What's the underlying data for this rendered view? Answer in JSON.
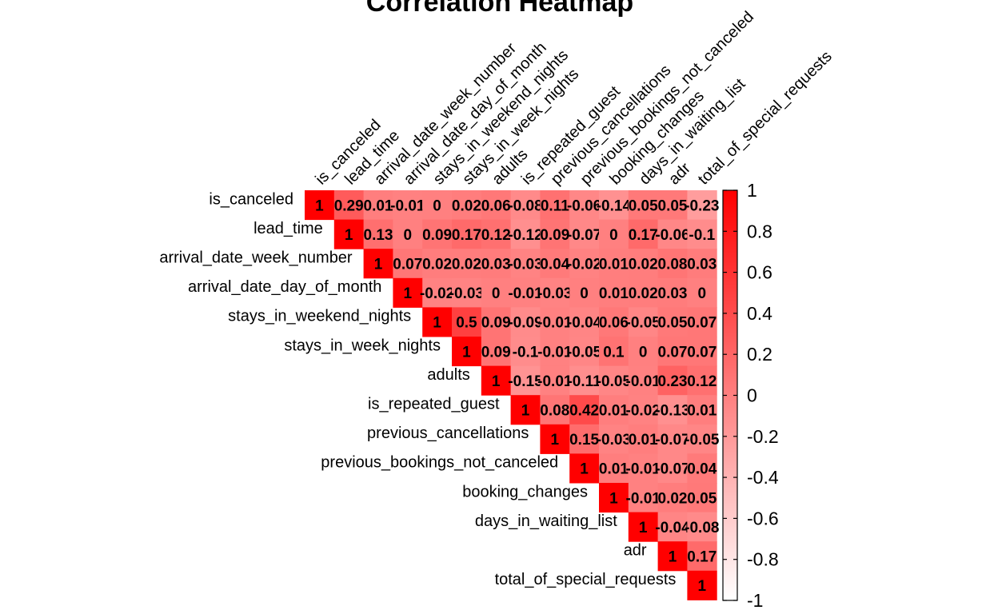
{
  "chart_data": {
    "type": "heatmap",
    "title": "Correlation Heatmap",
    "variables": [
      "is_canceled",
      "lead_time",
      "arrival_date_week_number",
      "arrival_date_day_of_month",
      "stays_in_weekend_nights",
      "stays_in_week_nights",
      "adults",
      "is_repeated_guest",
      "previous_cancellations",
      "previous_bookings_not_canceled",
      "booking_changes",
      "days_in_waiting_list",
      "adr",
      "total_of_special_requests"
    ],
    "matrix_upper": [
      [
        1,
        0.29,
        0.01,
        -0.01,
        0,
        0.02,
        0.06,
        -0.08,
        0.11,
        -0.06,
        -0.14,
        0.05,
        0.05,
        -0.23
      ],
      [
        1,
        0.13,
        0,
        0.09,
        0.17,
        0.12,
        -0.12,
        0.09,
        -0.07,
        0,
        0.17,
        -0.06,
        -0.1
      ],
      [
        1,
        0.07,
        0.02,
        0.02,
        0.03,
        -0.03,
        0.04,
        -0.02,
        0.01,
        0.02,
        0.08,
        0.03
      ],
      [
        1,
        -0.02,
        -0.03,
        0,
        -0.01,
        -0.03,
        0,
        0.01,
        0.02,
        0.03,
        0
      ],
      [
        1,
        0.5,
        0.09,
        -0.09,
        -0.01,
        -0.04,
        0.06,
        -0.05,
        0.05,
        0.07
      ],
      [
        1,
        0.09,
        -0.1,
        -0.01,
        -0.05,
        0.1,
        0,
        0.07,
        0.07
      ],
      [
        1,
        -0.15,
        -0.01,
        -0.11,
        -0.05,
        -0.01,
        0.23,
        0.12
      ],
      [
        1,
        0.08,
        0.42,
        0.01,
        -0.02,
        -0.13,
        0.01
      ],
      [
        1,
        0.15,
        -0.03,
        0.01,
        -0.07,
        -0.05
      ],
      [
        1,
        0.01,
        -0.01,
        -0.07,
        0.04
      ],
      [
        1,
        -0.01,
        0.02,
        0.05
      ],
      [
        1,
        -0.04,
        -0.08
      ],
      [
        1,
        0.17
      ],
      [
        1
      ]
    ],
    "color_scale": {
      "low": "#ffffff",
      "high": "#ff0000",
      "min": -1,
      "max": 1
    },
    "legend_ticks": [
      "1",
      "0.8",
      "0.6",
      "0.4",
      "0.2",
      "0",
      "-0.2",
      "-0.4",
      "-0.6",
      "-0.8",
      "-1"
    ]
  }
}
